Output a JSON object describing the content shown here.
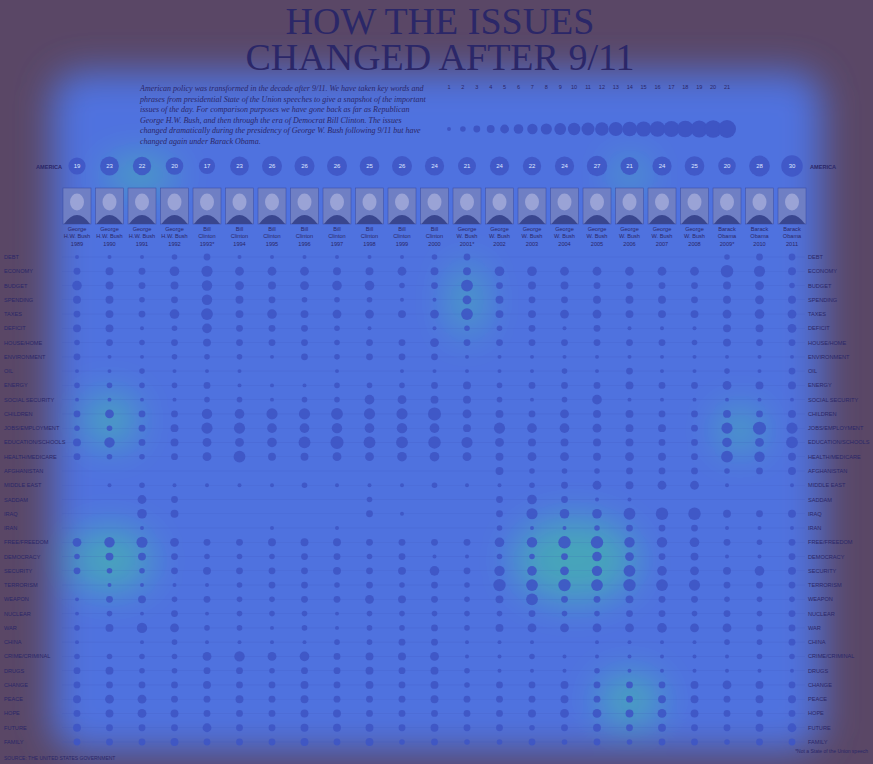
{
  "chart_data": {
    "type": "bubble_matrix",
    "title": "HOW THE ISSUES CHANGED AFTER 9/11",
    "subtitle": [
      "American policy was transformed in the decade after 9/11. We have taken key words and",
      "phrases from presidential State of the Union speeches to give a snapshot of the important",
      "issues of the day. For comparison purposes we have gone back as far as Republican",
      "George H.W. Bush, and then through the era of Democrat Bill Clinton. The issues",
      "changed dramatically during the presidency of George W. Bush following 9/11 but have",
      "changed again under Barack Obama."
    ],
    "color": "#3e55c4",
    "size_legend": [
      1,
      2,
      3,
      4,
      5,
      6,
      7,
      8,
      9,
      10,
      11,
      12,
      13,
      14,
      15,
      16,
      17,
      18,
      19,
      20,
      21
    ],
    "categories": [
      "1989",
      "1990",
      "1991",
      "1992",
      "1993*",
      "1994",
      "1995",
      "1996",
      "1997",
      "1998",
      "1999",
      "2000",
      "2001*",
      "2002",
      "2003",
      "2004",
      "2005",
      "2006",
      "2007",
      "2008",
      "2009*",
      "2010",
      "2011"
    ],
    "presidents": [
      "George H.W. Bush",
      "George H.W. Bush",
      "George H.W. Bush",
      "George H.W. Bush",
      "Bill Clinton",
      "Bill Clinton",
      "Bill Clinton",
      "Bill Clinton",
      "Bill Clinton",
      "Bill Clinton",
      "Bill Clinton",
      "Bill Clinton",
      "George W. Bush",
      "George W. Bush",
      "George W. Bush",
      "George W. Bush",
      "George W. Bush",
      "George W. Bush",
      "George W. Bush",
      "George W. Bush",
      "Barack Obama",
      "Barack Obama",
      "Barack Obama"
    ],
    "america": {
      "name": "AMERICA",
      "values": [
        19,
        23,
        22,
        20,
        17,
        23,
        26,
        26,
        26,
        25,
        26,
        24,
        21,
        24,
        22,
        24,
        27,
        21,
        24,
        25,
        20,
        28,
        30
      ]
    },
    "series": [
      {
        "name": "DEBT",
        "values": [
          1,
          1,
          1,
          2,
          3,
          1,
          1,
          1,
          1,
          1,
          1,
          2,
          3,
          0,
          0,
          0,
          0,
          0,
          0,
          0,
          2,
          3,
          3
        ]
      },
      {
        "name": "ECONOMY",
        "values": [
          3,
          4,
          3,
          6,
          8,
          5,
          5,
          5,
          4,
          4,
          5,
          4,
          4,
          6,
          6,
          5,
          5,
          5,
          5,
          5,
          10,
          8,
          4
        ]
      },
      {
        "name": "BUDGET",
        "values": [
          6,
          4,
          3,
          4,
          7,
          5,
          4,
          5,
          6,
          6,
          2,
          3,
          9,
          3,
          4,
          4,
          3,
          3,
          3,
          3,
          4,
          5,
          2
        ]
      },
      {
        "name": "SPENDING",
        "values": [
          4,
          4,
          2,
          3,
          7,
          4,
          3,
          2,
          2,
          2,
          1,
          1,
          5,
          4,
          3,
          3,
          4,
          4,
          4,
          3,
          4,
          5,
          4
        ]
      },
      {
        "name": "TAXES",
        "values": [
          3,
          4,
          3,
          6,
          9,
          4,
          6,
          4,
          5,
          5,
          4,
          5,
          9,
          4,
          4,
          5,
          5,
          4,
          4,
          4,
          5,
          6,
          5
        ]
      },
      {
        "name": "DEFICIT",
        "values": [
          4,
          4,
          1,
          2,
          6,
          3,
          3,
          3,
          2,
          1,
          0,
          1,
          2,
          2,
          3,
          1,
          3,
          1,
          1,
          1,
          4,
          4,
          5
        ]
      },
      {
        "name": "HOUSE/HOME",
        "values": [
          2,
          3,
          2,
          3,
          4,
          3,
          3,
          3,
          2,
          3,
          3,
          5,
          3,
          3,
          3,
          3,
          3,
          3,
          3,
          2,
          4,
          3,
          3
        ]
      },
      {
        "name": "ENVIRONMENT",
        "values": [
          3,
          1,
          1,
          2,
          2,
          2,
          1,
          3,
          2,
          3,
          3,
          3,
          1,
          1,
          1,
          1,
          1,
          1,
          1,
          1,
          1,
          1,
          1
        ]
      },
      {
        "name": "OIL",
        "values": [
          1,
          1,
          2,
          1,
          1,
          1,
          0,
          0,
          1,
          0,
          1,
          1,
          1,
          1,
          1,
          2,
          1,
          3,
          1,
          1,
          2,
          1,
          3
        ]
      },
      {
        "name": "ENERGY",
        "values": [
          2,
          2,
          2,
          2,
          3,
          1,
          1,
          1,
          2,
          2,
          2,
          3,
          4,
          2,
          3,
          3,
          3,
          4,
          3,
          3,
          5,
          4,
          4
        ]
      },
      {
        "name": "SOCIAL SECURITY",
        "values": [
          1,
          1,
          1,
          1,
          2,
          2,
          1,
          2,
          2,
          6,
          5,
          4,
          4,
          2,
          1,
          2,
          6,
          1,
          1,
          1,
          1,
          1,
          1
        ]
      },
      {
        "name": "CHILDREN",
        "values": [
          3,
          5,
          3,
          3,
          7,
          6,
          8,
          8,
          9,
          8,
          8,
          11,
          5,
          4,
          3,
          5,
          4,
          4,
          3,
          3,
          4,
          3,
          4
        ]
      },
      {
        "name": "JOBS/EMPLOYMENT",
        "values": [
          2,
          2,
          3,
          4,
          8,
          8,
          6,
          6,
          7,
          6,
          7,
          6,
          4,
          8,
          6,
          6,
          5,
          4,
          4,
          3,
          8,
          11,
          8
        ]
      },
      {
        "name": "EDUCATION/SCHOOLS",
        "values": [
          4,
          7,
          3,
          4,
          5,
          5,
          6,
          9,
          11,
          9,
          9,
          10,
          8,
          5,
          4,
          4,
          4,
          4,
          3,
          3,
          6,
          5,
          9
        ]
      },
      {
        "name": "HEALTH/MEDICARE",
        "values": [
          3,
          2,
          2,
          3,
          5,
          9,
          4,
          4,
          5,
          5,
          6,
          6,
          5,
          4,
          5,
          5,
          4,
          5,
          4,
          3,
          9,
          7,
          4
        ]
      },
      {
        "name": "AFGHANISTAN",
        "values": [
          0,
          0,
          0,
          0,
          0,
          0,
          0,
          0,
          0,
          0,
          0,
          0,
          0,
          4,
          2,
          2,
          2,
          3,
          3,
          3,
          2,
          3,
          4
        ]
      },
      {
        "name": "MIDDLE EAST",
        "values": [
          0,
          1,
          2,
          1,
          1,
          1,
          1,
          2,
          1,
          1,
          1,
          2,
          1,
          1,
          2,
          3,
          5,
          4,
          5,
          5,
          1,
          0,
          1
        ]
      },
      {
        "name": "SADDAM",
        "values": [
          0,
          0,
          5,
          3,
          0,
          0,
          0,
          0,
          0,
          2,
          0,
          0,
          0,
          3,
          6,
          3,
          1,
          1,
          0,
          0,
          0,
          0,
          0
        ]
      },
      {
        "name": "IRAQ",
        "values": [
          0,
          0,
          6,
          4,
          0,
          0,
          0,
          0,
          0,
          3,
          1,
          0,
          0,
          3,
          8,
          6,
          6,
          9,
          10,
          10,
          4,
          3,
          4
        ]
      },
      {
        "name": "IRAN",
        "values": [
          0,
          0,
          1,
          0,
          0,
          0,
          1,
          0,
          1,
          0,
          0,
          0,
          0,
          2,
          1,
          1,
          2,
          3,
          3,
          3,
          1,
          1,
          1
        ]
      },
      {
        "name": "FREE/FREEDOM",
        "values": [
          5,
          7,
          8,
          5,
          3,
          3,
          4,
          4,
          4,
          3,
          3,
          3,
          3,
          6,
          7,
          10,
          10,
          7,
          7,
          6,
          3,
          2,
          3
        ]
      },
      {
        "name": "DEMOCRACY",
        "values": [
          2,
          4,
          4,
          3,
          2,
          2,
          2,
          3,
          3,
          2,
          3,
          1,
          1,
          2,
          2,
          3,
          6,
          5,
          3,
          4,
          1,
          1,
          3
        ]
      },
      {
        "name": "SECURITY",
        "values": [
          3,
          2,
          2,
          3,
          4,
          3,
          3,
          3,
          4,
          3,
          4,
          6,
          3,
          7,
          6,
          5,
          7,
          9,
          6,
          5,
          4,
          6,
          4
        ]
      },
      {
        "name": "TERRORISM",
        "values": [
          0,
          1,
          1,
          1,
          1,
          2,
          3,
          3,
          2,
          3,
          2,
          3,
          2,
          10,
          9,
          10,
          9,
          10,
          9,
          8,
          3,
          3,
          3
        ]
      },
      {
        "name": "WEAPON",
        "values": [
          1,
          3,
          4,
          2,
          3,
          2,
          2,
          3,
          3,
          5,
          4,
          3,
          2,
          4,
          9,
          3,
          3,
          4,
          3,
          3,
          2,
          2,
          2
        ]
      },
      {
        "name": "NUCLEAR",
        "values": [
          1,
          2,
          1,
          3,
          1,
          2,
          2,
          2,
          1,
          2,
          2,
          2,
          2,
          2,
          3,
          2,
          2,
          3,
          3,
          2,
          3,
          2,
          3
        ]
      },
      {
        "name": "WAR",
        "values": [
          2,
          4,
          7,
          5,
          2,
          2,
          1,
          2,
          1,
          2,
          2,
          3,
          2,
          4,
          5,
          5,
          5,
          5,
          6,
          5,
          5,
          3,
          3
        ]
      },
      {
        "name": "CHINA",
        "values": [
          1,
          0,
          1,
          2,
          1,
          1,
          1,
          1,
          2,
          2,
          3,
          3,
          1,
          1,
          1,
          0,
          1,
          1,
          1,
          1,
          2,
          2,
          3
        ]
      },
      {
        "name": "CRIME/CRIMINAL",
        "values": [
          2,
          2,
          2,
          2,
          5,
          7,
          5,
          6,
          3,
          4,
          4,
          5,
          1,
          1,
          2,
          1,
          1,
          1,
          1,
          1,
          1,
          2,
          2
        ]
      },
      {
        "name": "DRUGS",
        "values": [
          3,
          4,
          2,
          2,
          3,
          3,
          2,
          3,
          3,
          4,
          3,
          4,
          2,
          1,
          1,
          1,
          2,
          1,
          1,
          1,
          1,
          1,
          1
        ]
      },
      {
        "name": "CHANGE",
        "values": [
          3,
          3,
          3,
          3,
          4,
          3,
          3,
          4,
          3,
          4,
          3,
          4,
          2,
          3,
          3,
          4,
          3,
          3,
          3,
          4,
          5,
          4,
          3
        ]
      },
      {
        "name": "PEACE",
        "values": [
          4,
          5,
          5,
          3,
          3,
          4,
          3,
          4,
          3,
          3,
          3,
          4,
          3,
          3,
          3,
          4,
          3,
          3,
          4,
          4,
          3,
          4,
          4
        ]
      },
      {
        "name": "HOPE",
        "values": [
          3,
          4,
          5,
          4,
          3,
          3,
          3,
          4,
          4,
          3,
          3,
          3,
          3,
          3,
          4,
          5,
          5,
          4,
          5,
          4,
          3,
          3,
          3
        ]
      },
      {
        "name": "FUTURE",
        "values": [
          4,
          3,
          3,
          3,
          5,
          3,
          3,
          4,
          4,
          4,
          3,
          4,
          3,
          3,
          2,
          3,
          4,
          3,
          4,
          3,
          3,
          4,
          5
        ]
      },
      {
        "name": "FAMILY",
        "values": [
          3,
          3,
          3,
          4,
          3,
          3,
          3,
          4,
          3,
          4,
          2,
          3,
          2,
          2,
          3,
          2,
          3,
          2,
          3,
          3,
          2,
          3,
          3
        ]
      }
    ],
    "footnote": "*Not a State of the Union speech",
    "source": "SOURCE: THE UNITED STATES GOVERNMENT"
  }
}
